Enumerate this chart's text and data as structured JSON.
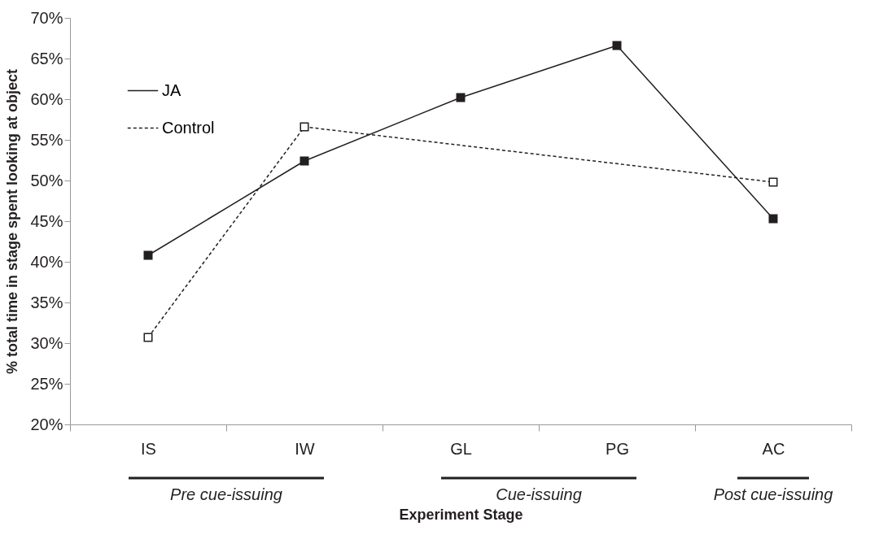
{
  "chart_data": {
    "type": "line",
    "categories": [
      "IS",
      "IW",
      "GL",
      "PG",
      "AC"
    ],
    "series": [
      {
        "name": "JA",
        "color": "#231f20",
        "line_style": "solid",
        "values": [
          40.8,
          52.4,
          60.2,
          66.6,
          45.3
        ]
      },
      {
        "name": "Control",
        "color": "#231f20",
        "line_style": "dashed",
        "values": [
          30.7,
          56.6,
          null,
          null,
          49.8
        ]
      }
    ],
    "xlabel": "Experiment Stage",
    "ylabel": "% total time in stage spent looking at object",
    "ylim": [
      20,
      70
    ],
    "yticks": [
      {
        "value": 20,
        "label": "20%"
      },
      {
        "value": 25,
        "label": "25%"
      },
      {
        "value": 30,
        "label": "30%"
      },
      {
        "value": 35,
        "label": "35%"
      },
      {
        "value": 40,
        "label": "40%"
      },
      {
        "value": 45,
        "label": "45%"
      },
      {
        "value": 50,
        "label": "50%"
      },
      {
        "value": 55,
        "label": "55%"
      },
      {
        "value": 60,
        "label": "60%"
      },
      {
        "value": 65,
        "label": "65%"
      },
      {
        "value": 70,
        "label": "70%"
      }
    ],
    "annotations": [
      "Pre cue-issuing",
      "Cue-issuing",
      "Post cue-issuing"
    ],
    "marker": "square",
    "grid": false,
    "legend": "top left"
  }
}
